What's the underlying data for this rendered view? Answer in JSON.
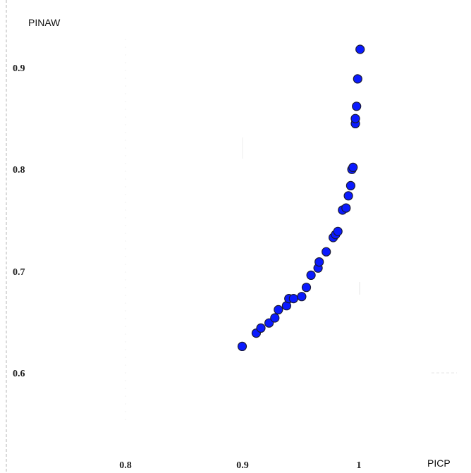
{
  "chart_data": {
    "type": "scatter",
    "xlabel": "PICP",
    "ylabel": "PINAW",
    "xlim": [
      0.7,
      1.1
    ],
    "ylim": [
      0.53,
      0.95
    ],
    "x_ticks": [
      "0.8",
      "0.9",
      "1"
    ],
    "y_ticks": [
      "0.9",
      "0.8",
      "0.7",
      "0.6"
    ],
    "grid": false,
    "marker_color": "#0a1aff",
    "marker_edge_color": "#1a1a33",
    "points": [
      {
        "x": 0.9,
        "y": 0.626
      },
      {
        "x": 0.912,
        "y": 0.639
      },
      {
        "x": 0.916,
        "y": 0.644
      },
      {
        "x": 0.923,
        "y": 0.649
      },
      {
        "x": 0.928,
        "y": 0.654
      },
      {
        "x": 0.931,
        "y": 0.662
      },
      {
        "x": 0.938,
        "y": 0.666
      },
      {
        "x": 0.94,
        "y": 0.673
      },
      {
        "x": 0.944,
        "y": 0.673
      },
      {
        "x": 0.951,
        "y": 0.675
      },
      {
        "x": 0.955,
        "y": 0.684
      },
      {
        "x": 0.959,
        "y": 0.696
      },
      {
        "x": 0.965,
        "y": 0.703
      },
      {
        "x": 0.966,
        "y": 0.709
      },
      {
        "x": 0.972,
        "y": 0.719
      },
      {
        "x": 0.978,
        "y": 0.733
      },
      {
        "x": 0.98,
        "y": 0.736
      },
      {
        "x": 0.982,
        "y": 0.739
      },
      {
        "x": 0.986,
        "y": 0.76
      },
      {
        "x": 0.989,
        "y": 0.762
      },
      {
        "x": 0.991,
        "y": 0.774
      },
      {
        "x": 0.993,
        "y": 0.784
      },
      {
        "x": 0.994,
        "y": 0.8
      },
      {
        "x": 0.995,
        "y": 0.802
      },
      {
        "x": 0.997,
        "y": 0.845
      },
      {
        "x": 0.997,
        "y": 0.85
      },
      {
        "x": 0.998,
        "y": 0.862
      },
      {
        "x": 0.999,
        "y": 0.889
      },
      {
        "x": 1.001,
        "y": 0.918
      }
    ]
  }
}
